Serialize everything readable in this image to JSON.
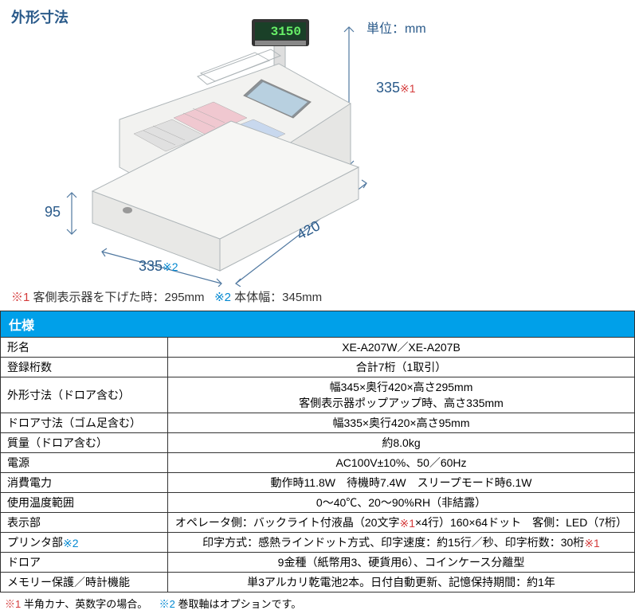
{
  "diagram": {
    "title": "外形寸法",
    "unit_label": "単位：mm",
    "height_main_value": "335",
    "height_main_star": "※1",
    "drawer_height": "95",
    "drawer_width_value": "335",
    "drawer_width_star": "※2",
    "depth": "420",
    "display_value": "3150",
    "footnote1_star": "※1",
    "footnote1_text": "客側表示器を下げた時：295mm",
    "footnote2_star": "※2",
    "footnote2_text": "本体幅：345mm"
  },
  "spec_header": "仕様",
  "spec_rows": [
    {
      "label": "形名",
      "value": "XE-A207W／XE-A207B"
    },
    {
      "label": "登録桁数",
      "value": "合計7桁（1取引）"
    },
    {
      "label": "外形寸法（ドロア含む）",
      "value_lines": [
        "幅345×奥行420×高さ295mm",
        "客側表示器ポップアップ時、高さ335mm"
      ]
    },
    {
      "label": "ドロア寸法（ゴム足含む）",
      "value": "幅335×奥行420×高さ95mm"
    },
    {
      "label": "質量（ドロア含む）",
      "value": "約8.0kg"
    },
    {
      "label": "電源",
      "value": "AC100V±10%、50／60Hz"
    },
    {
      "label": "消費電力",
      "value": "動作時11.8W　待機時7.4W　スリープモード時6.1W"
    },
    {
      "label": "使用温度範囲",
      "value": "0〜40℃、20〜90%RH（非結露）"
    },
    {
      "label": "表示部",
      "value_html": "オペレータ側：バックライト付液晶（20文字<span class='star-red'>※1</span>×4行）160×64ドット　客側：LED（7桁）"
    },
    {
      "label_html": "プリンタ部<span class='star-blue-sm'>※2</span>",
      "value_html": "印字方式：感熱ラインドット方式、印字速度：約15行／秒、印字桁数：30桁<span class='star-red'>※1</span>"
    },
    {
      "label": "ドロア",
      "value": "9金種（紙幣用3、硬貨用6）、コインケース分離型"
    },
    {
      "label": "メモリー保護／時計機能",
      "value": "単3アルカリ乾電池2本。日付自動更新、記憶保持期間：約1年"
    }
  ],
  "bottom_notes": {
    "n1_star": "※1",
    "n1_text": "半角カナ、英数字の場合。",
    "n2_star": "※2",
    "n2_text": "巻取軸はオプションです。"
  },
  "colors": {
    "header_bg": "#00a0e9",
    "dim_text": "#2a5a8a",
    "star_red": "#d43a3a",
    "star_blue": "#0288d1",
    "svg_body_fill": "#f2f2f0",
    "svg_body_stroke": "#aeb5b8",
    "svg_drawer_fill": "#e8e8e6",
    "svg_lcd_fill": "#b8d0e0",
    "svg_display_fill": "#1a4028",
    "svg_display_text": "#68f068",
    "svg_key_pink": "#f0c8d0",
    "svg_key_blue": "#c8d8ee",
    "svg_key_gray": "#e0e0e0",
    "svg_dimline": "#5078a0"
  }
}
